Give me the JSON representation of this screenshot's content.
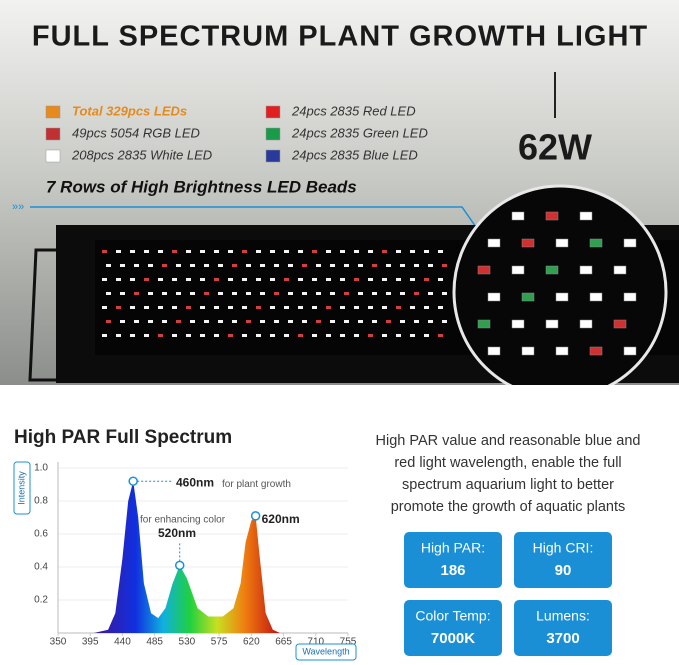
{
  "header": {
    "title": "FULL SPECTRUM PLANT GROWTH LIGHT",
    "legend": [
      {
        "text": "Total 329pcs LEDs",
        "color": "#e58a1f"
      },
      {
        "text": "49pcs 5054 RGB LED",
        "color": "#c03030"
      },
      {
        "text": "208pcs 2835 White LED",
        "color": "#ffffff"
      },
      {
        "text": "24pcs 2835 Red LED",
        "color": "#e02020"
      },
      {
        "text": "24pcs 2835 Green LED",
        "color": "#1a9b4a"
      },
      {
        "text": "24pcs 2835 Blue LED",
        "color": "#2a3a9a"
      }
    ],
    "power": "62W",
    "rows_note": "7 Rows of High Brightness LED Beads"
  },
  "chart_data": {
    "type": "area",
    "title": "High PAR Full Spectrum",
    "x_label": "Wavelength",
    "y_label": "Intensity",
    "x": [
      350,
      400,
      420,
      430,
      440,
      448,
      455,
      462,
      470,
      480,
      490,
      500,
      510,
      520,
      530,
      545,
      560,
      580,
      595,
      605,
      612,
      620,
      626,
      632,
      640,
      650,
      660,
      755
    ],
    "values": [
      0,
      0,
      0.02,
      0.12,
      0.45,
      0.8,
      0.92,
      0.7,
      0.3,
      0.12,
      0.09,
      0.15,
      0.3,
      0.41,
      0.33,
      0.15,
      0.1,
      0.1,
      0.15,
      0.3,
      0.55,
      0.68,
      0.71,
      0.45,
      0.12,
      0.02,
      0,
      0
    ],
    "xlim": [
      350,
      755
    ],
    "ylim": [
      0,
      1
    ],
    "xticks": [
      350,
      395,
      440,
      485,
      530,
      575,
      620,
      665,
      710,
      755
    ],
    "yticks": [
      0.2,
      0.4,
      0.6,
      0.8,
      {
        "value": 1,
        "label": "1.0"
      }
    ],
    "annotations": [
      {
        "x": 455,
        "y": 0.92,
        "label": "460nm",
        "note": "for plant growth"
      },
      {
        "x": 520,
        "y": 0.41,
        "label": "520nm",
        "note": "for enhancing color"
      },
      {
        "x": 626,
        "y": 0.71,
        "label": "620nm"
      }
    ]
  },
  "description": [
    "High PAR value and reasonable blue and",
    "red light wavelength, enable the full",
    "spectrum aquarium light to better",
    "promote the growth of aquatic plants"
  ],
  "specs": [
    {
      "label": "High PAR:",
      "value": "186"
    },
    {
      "label": "High CRI:",
      "value": "90"
    },
    {
      "label": "Color Temp:",
      "value": "7000K"
    },
    {
      "label": "Lumens:",
      "value": "3700"
    }
  ]
}
